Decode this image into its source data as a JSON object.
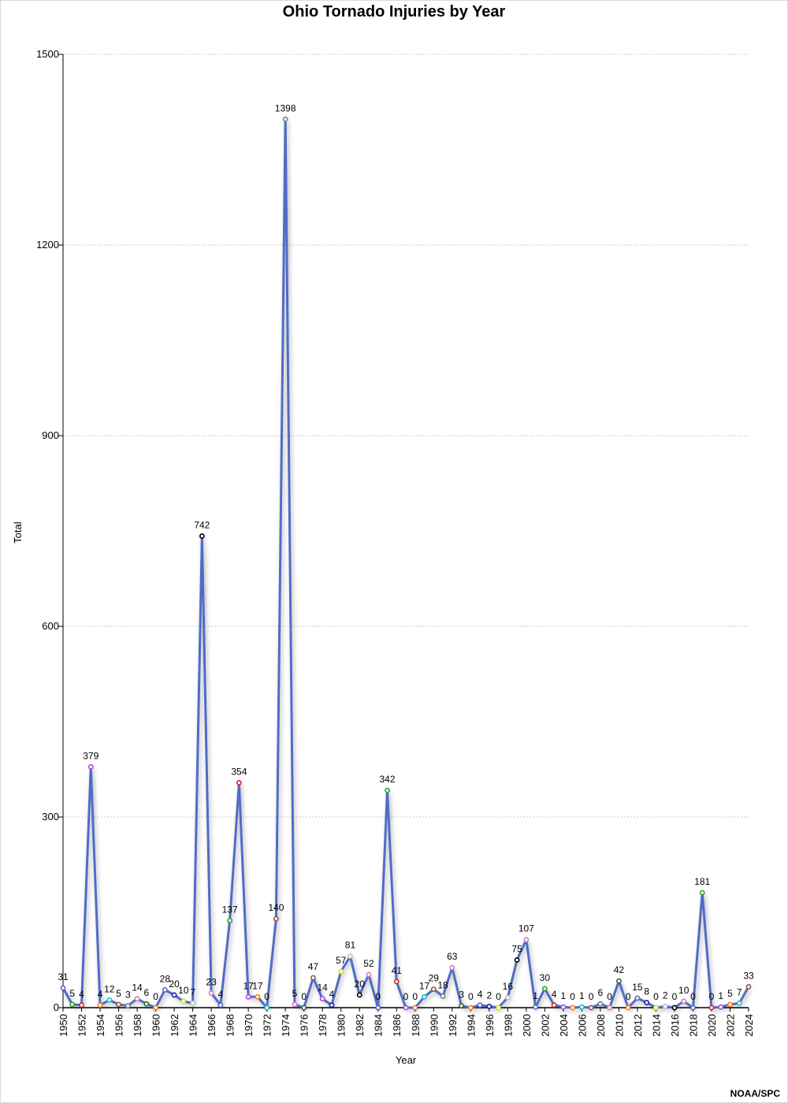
{
  "chart_data": {
    "type": "line",
    "title": "Ohio Tornado Injuries by Year",
    "xlabel": "Year",
    "ylabel": "Total",
    "ylim": [
      0,
      1500
    ],
    "yticks": [
      0,
      300,
      600,
      900,
      1200,
      1500
    ],
    "xlim": [
      1950,
      2024
    ],
    "xticks": [
      1950,
      1952,
      1954,
      1956,
      1958,
      1960,
      1962,
      1964,
      1966,
      1968,
      1970,
      1972,
      1974,
      1976,
      1978,
      1980,
      1982,
      1984,
      1986,
      1988,
      1990,
      1992,
      1994,
      1996,
      1998,
      2000,
      2002,
      2004,
      2006,
      2008,
      2010,
      2012,
      2014,
      2016,
      2018,
      2020,
      2022,
      2024
    ],
    "grid": true,
    "line_color": "#4f6cc7",
    "years": [
      1950,
      1951,
      1952,
      1953,
      1954,
      1955,
      1956,
      1957,
      1958,
      1959,
      1960,
      1961,
      1962,
      1963,
      1964,
      1965,
      1966,
      1967,
      1968,
      1969,
      1970,
      1971,
      1972,
      1973,
      1974,
      1975,
      1976,
      1977,
      1978,
      1979,
      1980,
      1981,
      1982,
      1983,
      1984,
      1985,
      1986,
      1987,
      1988,
      1989,
      1990,
      1991,
      1992,
      1993,
      1994,
      1995,
      1996,
      1997,
      1998,
      1999,
      2000,
      2001,
      2002,
      2003,
      2004,
      2005,
      2006,
      2007,
      2008,
      2009,
      2010,
      2011,
      2012,
      2013,
      2014,
      2015,
      2016,
      2017,
      2018,
      2019,
      2020,
      2021,
      2022,
      2023,
      2024
    ],
    "values": [
      31,
      5,
      4,
      379,
      4,
      12,
      5,
      3,
      14,
      6,
      0,
      28,
      20,
      10,
      7,
      742,
      23,
      4,
      137,
      354,
      17,
      17,
      0,
      140,
      1398,
      5,
      0,
      47,
      14,
      4,
      57,
      81,
      20,
      52,
      0,
      342,
      41,
      0,
      0,
      17,
      29,
      18,
      63,
      3,
      0,
      4,
      2,
      0,
      16,
      75,
      107,
      1,
      30,
      4,
      1,
      0,
      1,
      0,
      6,
      0,
      42,
      0,
      15,
      8,
      0,
      2,
      0,
      10,
      0,
      181,
      0,
      1,
      5,
      7,
      33
    ],
    "marker_colors": [
      "#4f6cc7",
      "#2ca02c",
      "#d62728",
      "#b048d8",
      "#ff7f0e",
      "#17becf",
      "#8c564b",
      "#7f7f7f",
      "#e377c2",
      "#2a6f2a",
      "#ff7f0e",
      "#4f6cc7",
      "#1a1aa8",
      "#e0e000",
      "#bdbdbd",
      "#000000",
      "#e377c2",
      "#4f6cc7",
      "#2ca02c",
      "#d62728",
      "#b048d8",
      "#ff7f0e",
      "#17becf",
      "#8c564b",
      "#7f7f7f",
      "#e377c2",
      "#2a6f2a",
      "#8c564b",
      "#b048d8",
      "#1a1aa8",
      "#e0e000",
      "#bdbdbd",
      "#000000",
      "#e377c2",
      "#4f6cc7",
      "#2ca02c",
      "#d62728",
      "#b048d8",
      "#ff7f0e",
      "#17becf",
      "#8c564b",
      "#7f7f7f",
      "#e377c2",
      "#2a6f2a",
      "#ff7f0e",
      "#4f6cc7",
      "#1a1aa8",
      "#e0e000",
      "#bdbdbd",
      "#000000",
      "#e377c2",
      "#4f6cc7",
      "#2ca02c",
      "#d62728",
      "#b048d8",
      "#ff7f0e",
      "#17becf",
      "#8c564b",
      "#7f7f7f",
      "#e377c2",
      "#2a6f2a",
      "#ff7f0e",
      "#4f6cc7",
      "#1a1aa8",
      "#e0e000",
      "#bdbdbd",
      "#000000",
      "#e377c2",
      "#4f6cc7",
      "#2ca02c",
      "#d62728",
      "#b048d8",
      "#ff7f0e",
      "#17becf",
      "#8c564b"
    ]
  },
  "footer": {
    "credit": "NOAA/SPC"
  }
}
